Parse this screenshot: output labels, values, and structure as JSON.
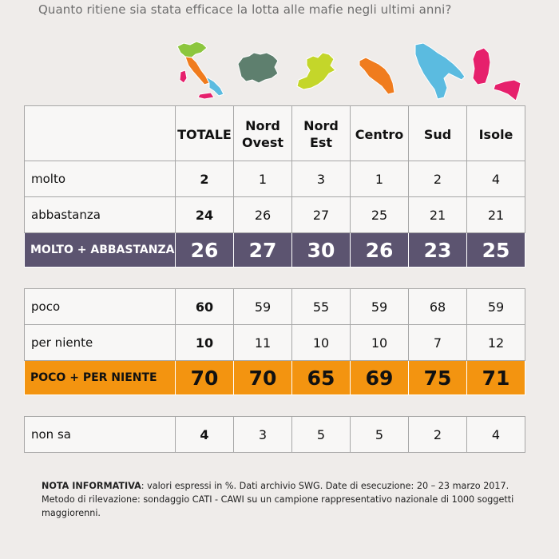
{
  "question": "Quanto ritiene sia stata efficace la lotta alle mafie negli ultimi anni?",
  "colors": {
    "italy_green": "#8cc63e",
    "italy_orange": "#f07c1e",
    "italy_red": "#e6206c",
    "italy_blue": "#5bbbe0",
    "nord_ovest": "#5e7f6e",
    "nord_est": "#c4d62a",
    "centro": "#f07c1e",
    "sud": "#5bbbe0",
    "isole": "#e6206c",
    "purple_band": "#5c5470",
    "orange_band": "#f39410"
  },
  "icons": [
    "map-italy-icon",
    "map-nord-ovest-icon",
    "map-nord-est-icon",
    "map-centro-icon",
    "map-sud-icon",
    "map-isole-icon"
  ],
  "chart_data": {
    "type": "table",
    "columns": [
      {
        "line1": "TOTALE",
        "line2": ""
      },
      {
        "line1": "Nord",
        "line2": "Ovest"
      },
      {
        "line1": "Nord",
        "line2": "Est"
      },
      {
        "line1": "Centro",
        "line2": ""
      },
      {
        "line1": "Sud",
        "line2": ""
      },
      {
        "line1": "Isole",
        "line2": ""
      }
    ],
    "rows": {
      "molto": {
        "label": "molto",
        "values": [
          "2",
          "1",
          "3",
          "1",
          "2",
          "4"
        ]
      },
      "abbastanza": {
        "label": "abbastanza",
        "values": [
          "24",
          "26",
          "27",
          "25",
          "21",
          "21"
        ]
      },
      "molto_abbastanza": {
        "label": "MOLTO + ABBASTANZA",
        "values": [
          "26",
          "27",
          "30",
          "26",
          "23",
          "25"
        ]
      },
      "poco": {
        "label": "poco",
        "values": [
          "60",
          "59",
          "55",
          "59",
          "68",
          "59"
        ]
      },
      "per_niente": {
        "label": "per niente",
        "values": [
          "10",
          "11",
          "10",
          "10",
          "7",
          "12"
        ]
      },
      "poco_per_niente": {
        "label": "POCO + PER NIENTE",
        "values": [
          "70",
          "70",
          "65",
          "69",
          "75",
          "71"
        ]
      },
      "non_sa": {
        "label": "non sa",
        "values": [
          "4",
          "3",
          "5",
          "5",
          "2",
          "4"
        ]
      }
    }
  },
  "note": {
    "label": "NOTA INFORMATIVA",
    "text": ": valori espressi in %. Dati archivio SWG. Date di esecuzione: 20 – 23 marzo 2017. Metodo di rilevazione: sondaggio CATI - CAWI su un campione rappresentativo nazionale di 1000 soggetti maggiorenni."
  }
}
